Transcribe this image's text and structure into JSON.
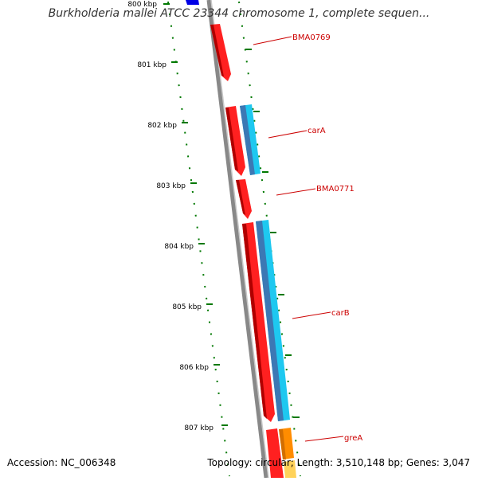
{
  "title": "Burkholderia mallei ATCC 23344 chromosome 1, complete sequen...",
  "footer": {
    "accession": "Accession: NC_006348",
    "summary": "Topology: circular; Length: 3,510,148 bp; Genes: 3,047"
  },
  "colors": {
    "backbone": "#808080",
    "gene_forward": "#ff0000",
    "gene_cds": "#1ec8f0",
    "gene_cds_dark": "#3c78b4",
    "gene_other": "#ff8c00",
    "gene_top": "#0000e6",
    "tick": "#007800",
    "label": "#cc0000"
  },
  "ticks": [
    {
      "label": "800 kbp"
    },
    {
      "label": "801 kbp"
    },
    {
      "label": "802 kbp"
    },
    {
      "label": "803 kbp"
    },
    {
      "label": "804 kbp"
    },
    {
      "label": "805 kbp"
    },
    {
      "label": "806 kbp"
    },
    {
      "label": "807 kbp"
    }
  ],
  "gene_labels": [
    {
      "name": "BMA0769"
    },
    {
      "name": "carA"
    },
    {
      "name": "BMA0771"
    },
    {
      "name": "carB"
    },
    {
      "name": "greA"
    }
  ]
}
